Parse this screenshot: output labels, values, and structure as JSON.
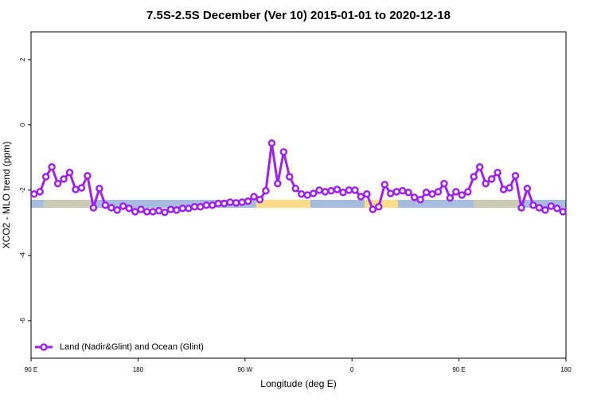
{
  "chart_data": {
    "type": "line",
    "title": "7.5S-2.5S December (Ver 10)   2015-01-01 to 2020-12-18",
    "x_label": "Longitude (deg E)",
    "y_label": "XCO2 - MLO trend (ppm)",
    "x": [
      92.5,
      97.5,
      102.5,
      107.5,
      112.5,
      117.5,
      122.5,
      127.5,
      132.5,
      137.5,
      142.5,
      147.5,
      152.5,
      157.5,
      162.5,
      167.5,
      172.5,
      177.5,
      182.5,
      187.5,
      192.5,
      197.5,
      202.5,
      207.5,
      212.5,
      217.5,
      222.5,
      227.5,
      232.5,
      237.5,
      242.5,
      247.5,
      252.5,
      257.5,
      262.5,
      267.5,
      272.5,
      277.5,
      282.5,
      287.5,
      292.5,
      297.5,
      302.5,
      307.5,
      312.5,
      317.5,
      322.5,
      327.5,
      332.5,
      337.5,
      342.5,
      347.5,
      352.5,
      357.5,
      362.5,
      367.5,
      372.5,
      377.5,
      382.5,
      387.5,
      392.5,
      397.5,
      402.5,
      407.5,
      412.5,
      417.5,
      422.5,
      427.5,
      432.5,
      437.5,
      442.5,
      447.5,
      452.5,
      457.5,
      462.5,
      467.5,
      472.5,
      477.5,
      482.5,
      487.5,
      492.5,
      497.5,
      502.5,
      507.5,
      512.5,
      517.5,
      522.5,
      527.5,
      532.5,
      537.5
    ],
    "series": [
      {
        "name": "Land (Nadir&Glint) and Ocean (Glint)",
        "color": "#a020f0",
        "values": [
          -2.12,
          -2.05,
          -1.59,
          -1.29,
          -1.8,
          -1.66,
          -1.46,
          -1.98,
          -1.93,
          -1.56,
          -2.54,
          -1.95,
          -2.46,
          -2.54,
          -2.61,
          -2.49,
          -2.56,
          -2.66,
          -2.59,
          -2.66,
          -2.66,
          -2.63,
          -2.68,
          -2.59,
          -2.61,
          -2.56,
          -2.56,
          -2.51,
          -2.51,
          -2.46,
          -2.46,
          -2.41,
          -2.41,
          -2.37,
          -2.39,
          -2.37,
          -2.34,
          -2.2,
          -2.29,
          -2.02,
          -0.56,
          -1.8,
          -0.83,
          -1.59,
          -1.95,
          -2.12,
          -2.15,
          -2.1,
          -2.0,
          -2.05,
          -2.02,
          -1.98,
          -2.07,
          -2.0,
          -2.0,
          -2.2,
          -2.12,
          -2.59,
          -2.51,
          -1.83,
          -2.1,
          -2.05,
          -2.02,
          -2.07,
          -2.22,
          -2.29,
          -2.07,
          -2.12,
          -2.05,
          -1.8,
          -2.24,
          -2.05,
          -2.15,
          -2.05,
          -1.59,
          -1.29,
          -1.8,
          -1.66,
          -1.46,
          -1.98,
          -1.93,
          -1.56,
          -2.54,
          -1.95,
          -2.46,
          -2.54,
          -2.61,
          -2.49,
          -2.56,
          -2.66
        ]
      }
    ],
    "xlim": [
      90,
      540
    ],
    "xticks": [
      {
        "value": 90,
        "label": "90 E"
      },
      180,
      {
        "value": 270,
        "label": "90 W"
      },
      {
        "value": 360,
        "label": "0"
      },
      {
        "value": 450,
        "label": "90 E"
      },
      {
        "value": 540,
        "label": "180"
      }
    ],
    "ylim": [
      -7.15,
      2.85
    ],
    "yticks": [
      -6,
      -4,
      -2,
      0,
      2
    ],
    "legend": "bottom-left"
  }
}
